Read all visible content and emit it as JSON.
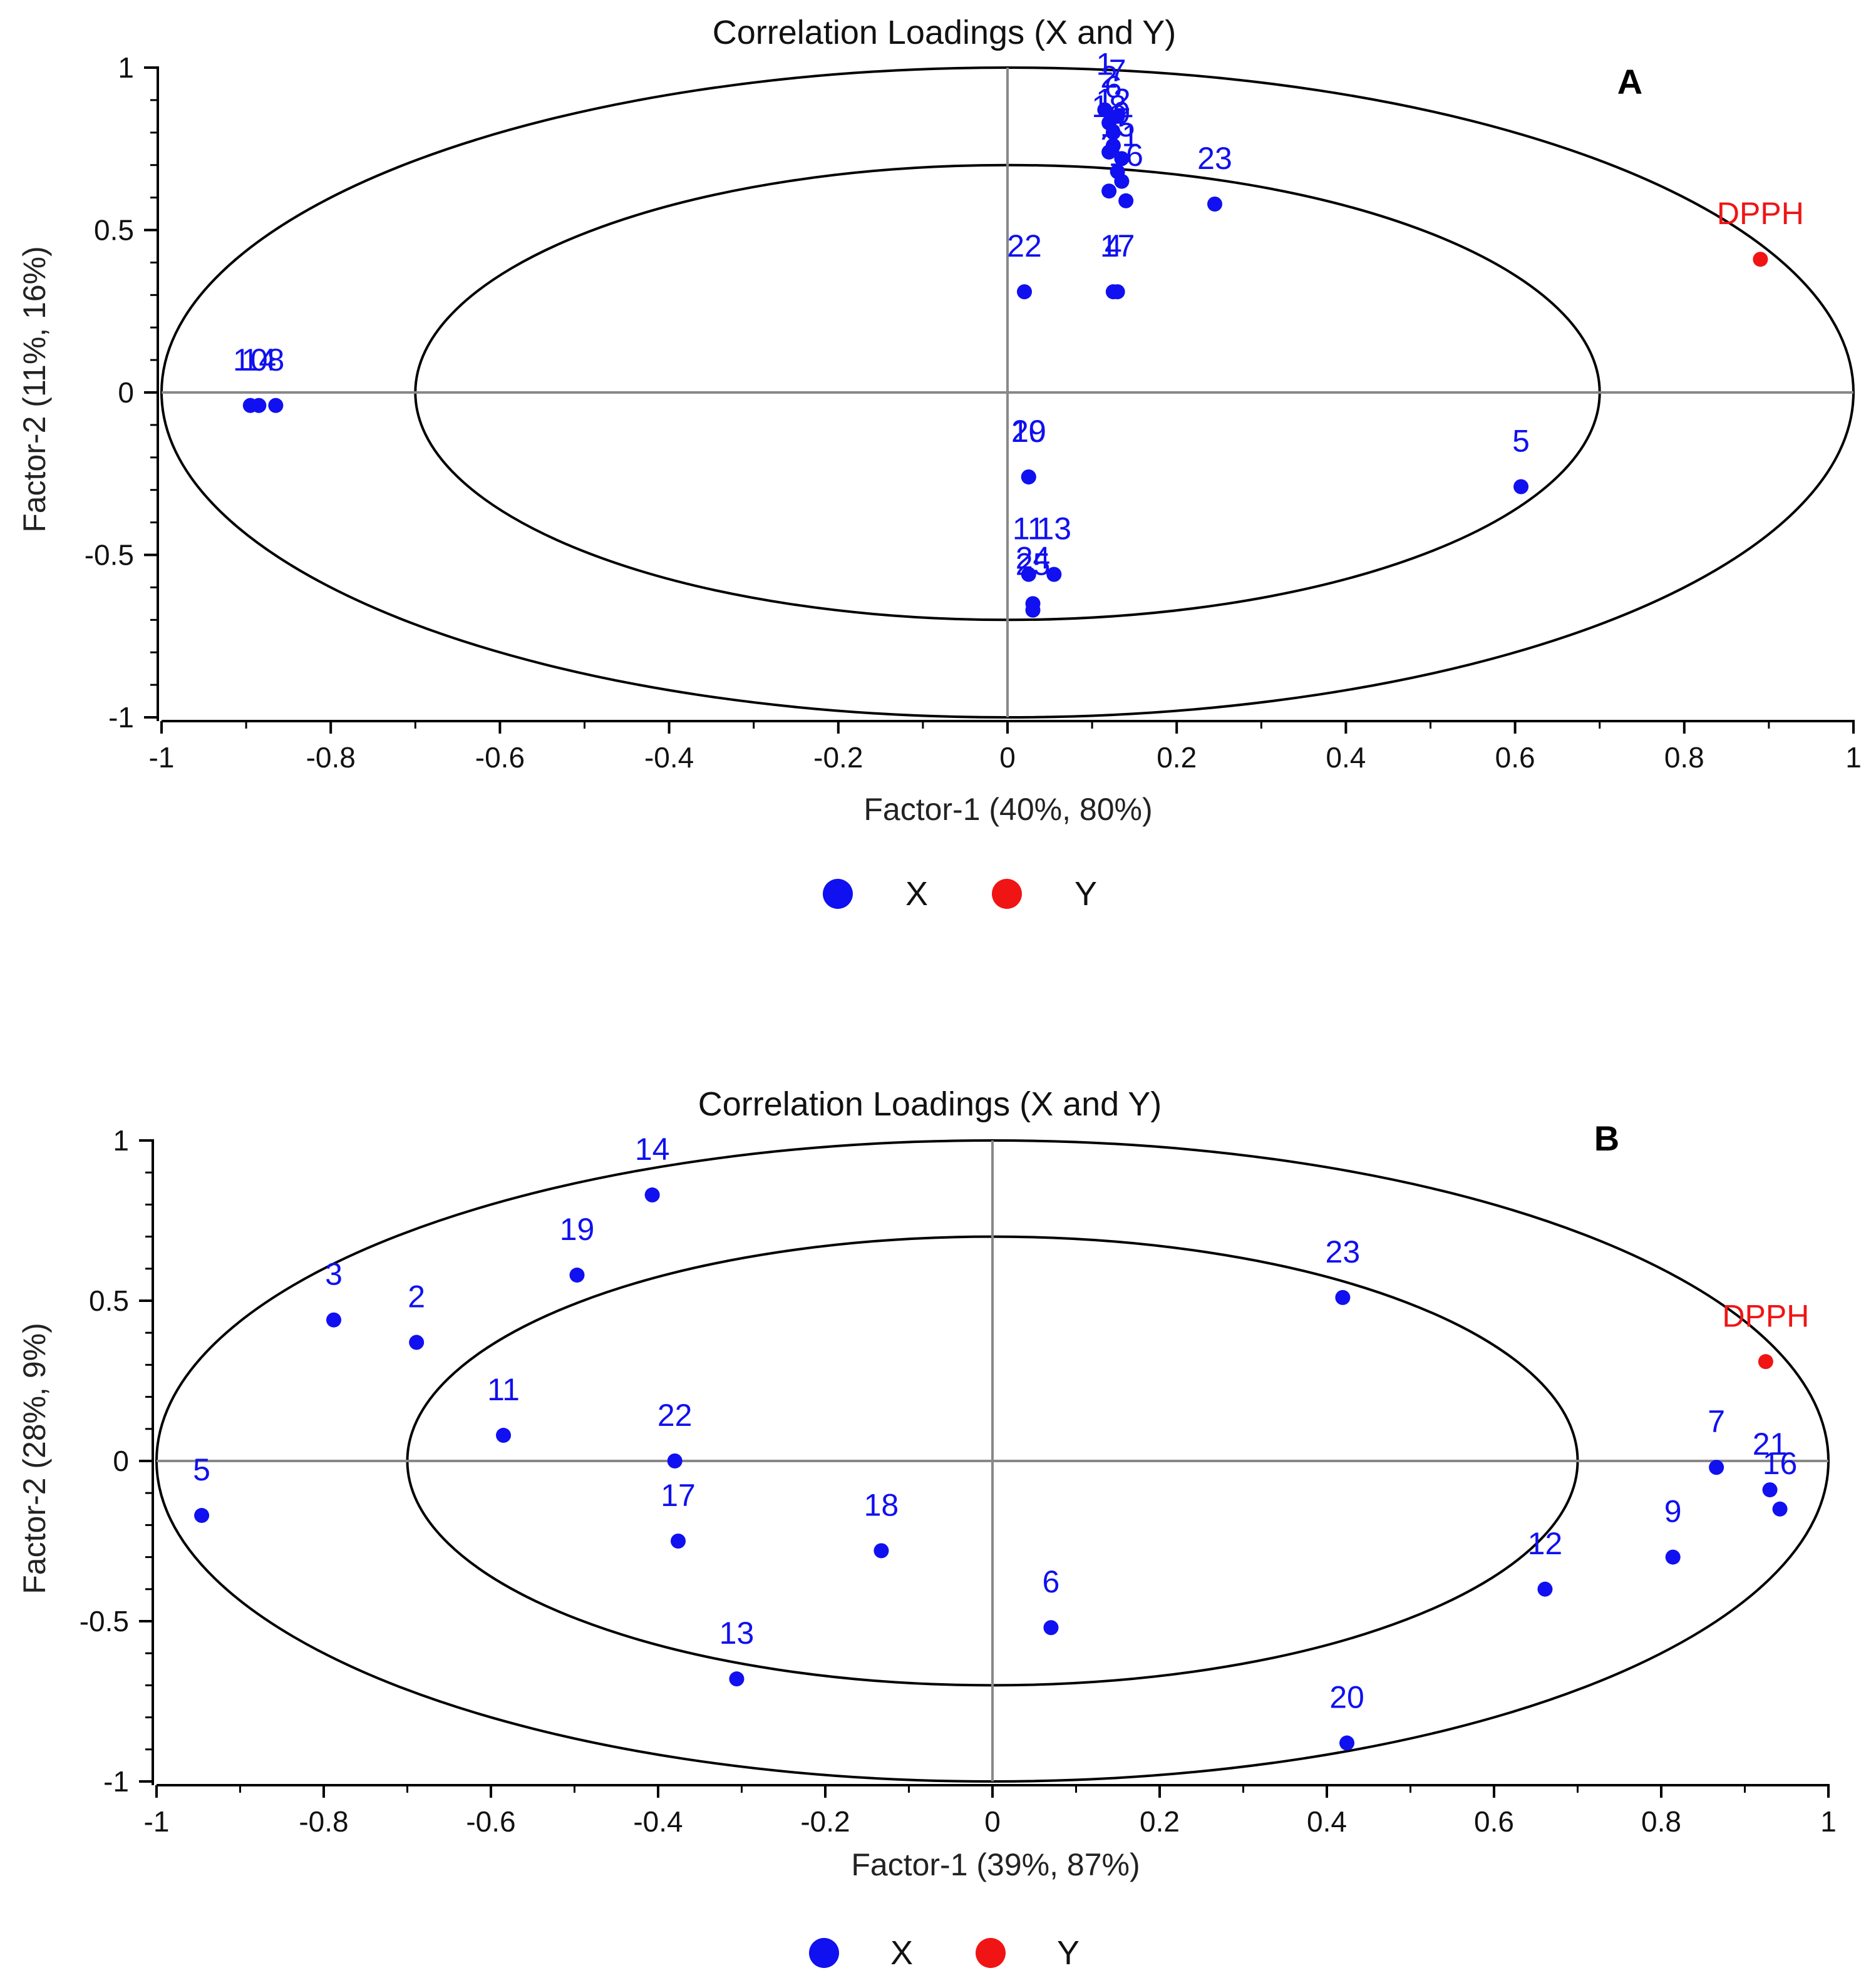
{
  "colors": {
    "x_series": "#1010f0",
    "y_series": "#f01414",
    "axis": "#000000",
    "crosshair": "#888888"
  },
  "legend": {
    "x_label": "X",
    "y_label": "Y"
  },
  "chart_data": [
    {
      "type": "scatter",
      "title": "Correlation Loadings (X and Y)",
      "panel": "A",
      "xlabel": "Factor-1 (40%, 80%)",
      "ylabel": "Factor-2 (11%, 16%)",
      "xlim": [
        -1,
        1
      ],
      "ylim": [
        -1,
        1
      ],
      "xticks": [
        "-1",
        "-0.8",
        "-0.6",
        "-0.4",
        "-0.2",
        "0",
        "0.2",
        "0.4",
        "0.6",
        "0.8",
        "1"
      ],
      "yticks": [
        "1",
        "0.5",
        "0",
        "-0.5",
        "-1"
      ],
      "circles": [
        1.0,
        0.7
      ],
      "series": [
        {
          "name": "X",
          "points": [
            {
              "label": "10",
              "x": -0.895,
              "y": -0.04
            },
            {
              "label": "14",
              "x": -0.885,
              "y": -0.04
            },
            {
              "label": "8",
              "x": -0.865,
              "y": -0.04
            },
            {
              "label": "22",
              "x": 0.02,
              "y": 0.31
            },
            {
              "label": "23",
              "x": 0.245,
              "y": 0.58
            },
            {
              "label": "5",
              "x": 0.607,
              "y": -0.29
            },
            {
              "label": "4",
              "x": 0.125,
              "y": 0.31
            },
            {
              "label": "17",
              "x": 0.13,
              "y": 0.31
            },
            {
              "label": "3",
              "x": 0.12,
              "y": 0.62
            },
            {
              "label": "1",
              "x": 0.115,
              "y": 0.87
            },
            {
              "label": "2",
              "x": 0.12,
              "y": 0.83
            },
            {
              "label": "6",
              "x": 0.125,
              "y": 0.8
            },
            {
              "label": "7",
              "x": 0.13,
              "y": 0.85
            },
            {
              "label": "9",
              "x": 0.135,
              "y": 0.72
            },
            {
              "label": "12",
              "x": 0.125,
              "y": 0.76
            },
            {
              "label": "15",
              "x": 0.13,
              "y": 0.68
            },
            {
              "label": "16",
              "x": 0.14,
              "y": 0.59
            },
            {
              "label": "18",
              "x": 0.12,
              "y": 0.74
            },
            {
              "label": "21",
              "x": 0.135,
              "y": 0.65
            },
            {
              "label": "19",
              "x": 0.025,
              "y": -0.26
            },
            {
              "label": "20",
              "x": 0.025,
              "y": -0.26
            },
            {
              "label": "11",
              "x": 0.025,
              "y": -0.56
            },
            {
              "label": "13",
              "x": 0.055,
              "y": -0.56
            },
            {
              "label": "24",
              "x": 0.03,
              "y": -0.65
            },
            {
              "label": "25",
              "x": 0.03,
              "y": -0.67
            }
          ]
        },
        {
          "name": "Y",
          "points": [
            {
              "label": "DPPH",
              "x": 0.89,
              "y": 0.41
            }
          ]
        }
      ]
    },
    {
      "type": "scatter",
      "title": "Correlation Loadings (X and Y)",
      "panel": "B",
      "xlabel": "Factor-1 (39%, 87%)",
      "ylabel": "Factor-2 (28%, 9%)",
      "xlim": [
        -1,
        1
      ],
      "ylim": [
        -1,
        1
      ],
      "xticks": [
        "-1",
        "-0.8",
        "-0.6",
        "-0.4",
        "-0.2",
        "0",
        "0.2",
        "0.4",
        "0.6",
        "0.8",
        "1"
      ],
      "yticks": [
        "1",
        "0.5",
        "0",
        "-0.5",
        "-1"
      ],
      "circles": [
        1.0,
        0.7
      ],
      "series": [
        {
          "name": "X",
          "points": [
            {
              "label": "14",
              "x": -0.407,
              "y": 0.83
            },
            {
              "label": "19",
              "x": -0.497,
              "y": 0.58
            },
            {
              "label": "3",
              "x": -0.788,
              "y": 0.44
            },
            {
              "label": "2",
              "x": -0.689,
              "y": 0.37
            },
            {
              "label": "11",
              "x": -0.585,
              "y": 0.08
            },
            {
              "label": "22",
              "x": -0.38,
              "y": 0.0
            },
            {
              "label": "17",
              "x": -0.376,
              "y": -0.25
            },
            {
              "label": "5",
              "x": -0.946,
              "y": -0.17
            },
            {
              "label": "18",
              "x": -0.133,
              "y": -0.28
            },
            {
              "label": "13",
              "x": -0.306,
              "y": -0.68
            },
            {
              "label": "6",
              "x": 0.07,
              "y": -0.52
            },
            {
              "label": "23",
              "x": 0.419,
              "y": 0.51
            },
            {
              "label": "20",
              "x": 0.424,
              "y": -0.88
            },
            {
              "label": "12",
              "x": 0.661,
              "y": -0.4
            },
            {
              "label": "9",
              "x": 0.814,
              "y": -0.3
            },
            {
              "label": "7",
              "x": 0.866,
              "y": -0.02
            },
            {
              "label": "21",
              "x": 0.93,
              "y": -0.09
            },
            {
              "label": "16",
              "x": 0.942,
              "y": -0.15
            }
          ]
        },
        {
          "name": "Y",
          "points": [
            {
              "label": "DPPH",
              "x": 0.925,
              "y": 0.31
            }
          ]
        }
      ]
    }
  ]
}
